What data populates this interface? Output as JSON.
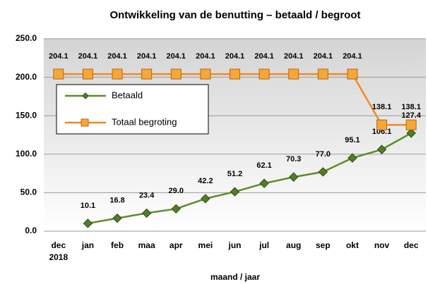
{
  "chart_data": {
    "type": "line",
    "title": "Ontwikkeling van de benutting – betaald / begroot",
    "x_label": "maand / jaar",
    "categories": [
      "dec 2018",
      "jan",
      "feb",
      "maa",
      "apr",
      "mei",
      "jun",
      "jul",
      "aug",
      "sep",
      "okt",
      "nov",
      "dec"
    ],
    "series": [
      {
        "name": "Betaald",
        "color": "#5b8c2a",
        "marker": "diamond",
        "values": [
          null,
          10.1,
          16.8,
          23.4,
          29.0,
          42.2,
          51.2,
          62.1,
          70.3,
          77.0,
          95.1,
          106.1,
          127.4
        ],
        "value_labels": [
          null,
          "10.1",
          "16.8",
          "23.4",
          "29.0",
          "42.2",
          "51.2",
          "62.1",
          "70.3",
          "77.0",
          "95.1",
          "106.1",
          "127.4"
        ]
      },
      {
        "name": "Totaal begroting",
        "color": "#f08a24",
        "marker": "square",
        "values": [
          204.1,
          204.1,
          204.1,
          204.1,
          204.1,
          204.1,
          204.1,
          204.1,
          204.1,
          204.1,
          204.1,
          138.1,
          138.1
        ],
        "value_labels": [
          "204.1",
          "204.1",
          "204.1",
          "204.1",
          "204.1",
          "204.1",
          "204.1",
          "204.1",
          "204.1",
          "204.1",
          "204.1",
          "138.1",
          "138.1"
        ]
      }
    ],
    "ylim": [
      0,
      250
    ],
    "yticks": [
      {
        "value": 0,
        "label": "0.0"
      },
      {
        "value": 50,
        "label": "50.0"
      },
      {
        "value": 100,
        "label": "100.0"
      },
      {
        "value": 150,
        "label": "150.0"
      },
      {
        "value": 200,
        "label": "200.0"
      },
      {
        "value": 250,
        "label": "250.0"
      }
    ],
    "grid": true,
    "legend_position": "upper-left"
  }
}
